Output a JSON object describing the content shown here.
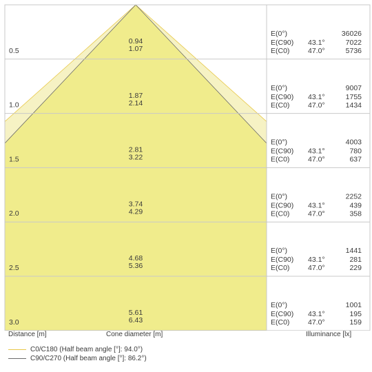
{
  "chart_data": {
    "type": "cone-diagram",
    "distances": [
      "0.5",
      "1.0",
      "1.5",
      "2.0",
      "2.5",
      "3.0"
    ],
    "rows": [
      {
        "distance": 0.5,
        "cone_c0": "0.94",
        "cone_c90": "1.07",
        "e0": "36026",
        "ec90_angle": "43.1°",
        "ec90": "7022",
        "ec0_angle": "47.0°",
        "ec0": "5736"
      },
      {
        "distance": 1.0,
        "cone_c0": "1.87",
        "cone_c90": "2.14",
        "e0": "9007",
        "ec90_angle": "43.1°",
        "ec90": "1755",
        "ec0_angle": "47.0°",
        "ec0": "1434"
      },
      {
        "distance": 1.5,
        "cone_c0": "2.81",
        "cone_c90": "3.22",
        "e0": "4003",
        "ec90_angle": "43.1°",
        "ec90": "780",
        "ec0_angle": "47.0°",
        "ec0": "637"
      },
      {
        "distance": 2.0,
        "cone_c0": "3.74",
        "cone_c90": "4.29",
        "e0": "2252",
        "ec90_angle": "43.1°",
        "ec90": "439",
        "ec0_angle": "47.0°",
        "ec0": "358"
      },
      {
        "distance": 2.5,
        "cone_c0": "4.68",
        "cone_c90": "5.36",
        "e0": "1441",
        "ec90_angle": "43.1°",
        "ec90": "281",
        "ec0_angle": "47.0°",
        "ec0": "229"
      },
      {
        "distance": 3.0,
        "cone_c0": "5.61",
        "cone_c90": "6.43",
        "e0": "1001",
        "ec90_angle": "43.1°",
        "ec90": "195",
        "ec0_angle": "47.0°",
        "ec0": "159"
      }
    ],
    "e_labels": {
      "e0": "E(0°)",
      "ec90": "E(C90)",
      "ec0": "E(C0)"
    },
    "xlabel_distance": "Distance [m]",
    "xlabel_cone": "Cone diameter [m]",
    "xlabel_illuminance": "Illuminance [lx]",
    "legend": [
      {
        "label": "C0/C180 (Half beam angle [°]: 94.0°)",
        "color": "#e8c84a"
      },
      {
        "label": "C90/C270 (Half beam angle [°]: 86.2°)",
        "color": "#6b6b6b"
      }
    ],
    "half_angle_c0": 94.0,
    "half_angle_c90": 86.2,
    "colors": {
      "cone_fill": "#f0ec8c",
      "cone_outer": "#f6f2c4",
      "grid": "#c8c8c8",
      "text": "#3a3a3a"
    }
  }
}
